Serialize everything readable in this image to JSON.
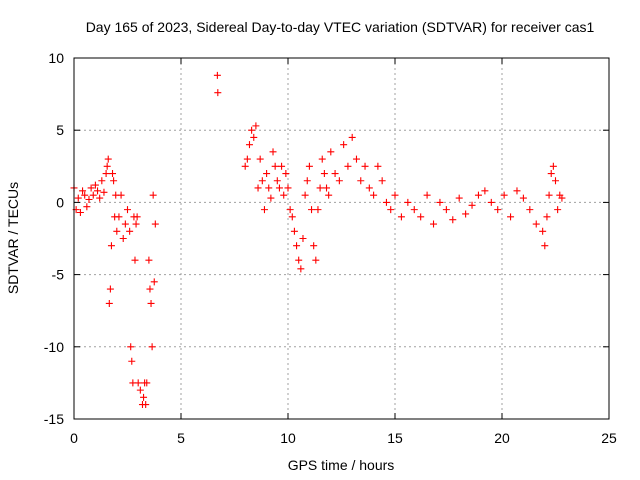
{
  "chart_data": {
    "type": "scatter",
    "title": "Day 165 of 2023, Sidereal Day-to-day VTEC variation (SDTVAR) for receiver cas1",
    "xlabel": "GPS time / hours",
    "ylabel": "SDTVAR / TECUs",
    "xlim": [
      0,
      25
    ],
    "ylim": [
      -15,
      10
    ],
    "xticks": [
      0,
      5,
      10,
      15,
      20,
      25
    ],
    "xtick_labels": [
      "0",
      "5",
      "10",
      "15",
      "20",
      "25"
    ],
    "yticks": [
      10,
      5,
      0,
      -5,
      -10,
      -15
    ],
    "ytick_labels": [
      "10",
      "5",
      "0",
      "-5",
      "-10",
      "-15"
    ],
    "grid": true,
    "marker": "+",
    "color": "#ff0000",
    "series": [
      {
        "name": "cas1",
        "x": [
          0.0,
          0.1,
          0.2,
          0.3,
          0.4,
          0.5,
          0.6,
          0.7,
          0.8,
          0.9,
          1.0,
          1.1,
          1.2,
          1.3,
          1.4,
          1.5,
          1.55,
          1.6,
          1.65,
          1.7,
          1.75,
          1.8,
          1.85,
          1.9,
          1.95,
          2.0,
          2.1,
          2.2,
          2.3,
          2.4,
          2.5,
          2.6,
          2.65,
          2.7,
          2.75,
          2.8,
          2.85,
          2.9,
          2.95,
          3.0,
          3.1,
          3.2,
          3.25,
          3.3,
          3.35,
          3.4,
          3.5,
          3.55,
          3.6,
          3.65,
          3.7,
          3.75,
          3.8,
          6.7,
          6.72,
          8.0,
          8.1,
          8.2,
          8.3,
          8.4,
          8.5,
          8.6,
          8.7,
          8.8,
          8.9,
          9.0,
          9.1,
          9.2,
          9.3,
          9.4,
          9.5,
          9.6,
          9.7,
          9.8,
          9.9,
          10.0,
          10.1,
          10.2,
          10.3,
          10.4,
          10.5,
          10.6,
          10.7,
          10.8,
          10.9,
          11.0,
          11.1,
          11.2,
          11.3,
          11.4,
          11.5,
          11.6,
          11.7,
          11.8,
          11.9,
          12.0,
          12.2,
          12.4,
          12.6,
          12.8,
          13.0,
          13.2,
          13.4,
          13.6,
          13.8,
          14.0,
          14.2,
          14.4,
          14.6,
          14.8,
          15.0,
          15.3,
          15.6,
          15.9,
          16.2,
          16.5,
          16.8,
          17.1,
          17.4,
          17.7,
          18.0,
          18.3,
          18.6,
          18.9,
          19.2,
          19.5,
          19.8,
          20.1,
          20.4,
          20.7,
          21.0,
          21.3,
          21.6,
          21.9,
          22.0,
          22.1,
          22.2,
          22.3,
          22.4,
          22.5,
          22.6,
          22.7,
          22.8
        ],
        "y": [
          1.0,
          -0.5,
          0.3,
          -0.7,
          0.8,
          0.5,
          -0.3,
          0.2,
          1.0,
          0.5,
          1.2,
          0.8,
          0.3,
          1.5,
          0.7,
          2.0,
          2.5,
          3.0,
          -7.0,
          -6.0,
          -3.0,
          2.0,
          1.5,
          -1.0,
          0.5,
          -2.0,
          -1.0,
          0.5,
          -2.5,
          -1.5,
          -0.5,
          -2.0,
          -10.0,
          -11.0,
          -12.5,
          -1.0,
          -4.0,
          -1.5,
          -1.0,
          -12.5,
          -13.0,
          -14.0,
          -13.5,
          -12.5,
          -14.0,
          -12.5,
          -4.0,
          -6.0,
          -7.0,
          -10.0,
          0.5,
          -5.5,
          -1.5,
          8.8,
          7.6,
          2.5,
          3.0,
          4.0,
          5.0,
          4.5,
          5.3,
          1.0,
          3.0,
          1.5,
          -0.5,
          2.0,
          1.0,
          0.3,
          3.5,
          2.5,
          1.5,
          1.0,
          2.5,
          0.5,
          2.0,
          1.0,
          -0.5,
          -1.0,
          -2.0,
          -3.0,
          -4.0,
          -4.6,
          -2.5,
          0.5,
          1.5,
          2.5,
          -0.5,
          -3.0,
          -4.0,
          -0.5,
          1.0,
          3.0,
          2.0,
          1.0,
          0.5,
          3.5,
          2.0,
          1.5,
          4.0,
          2.5,
          4.5,
          3.0,
          1.5,
          2.5,
          1.0,
          0.5,
          2.5,
          1.5,
          0.0,
          -0.5,
          0.5,
          -1.0,
          0.0,
          -0.5,
          -1.0,
          0.5,
          -1.5,
          0.0,
          -0.5,
          -1.2,
          0.3,
          -0.8,
          -0.2,
          0.5,
          0.8,
          0.0,
          -0.5,
          0.5,
          -1.0,
          0.8,
          0.3,
          -0.5,
          -1.5,
          -2.0,
          -3.0,
          -1.0,
          0.5,
          2.0,
          2.5,
          1.5,
          -0.5,
          0.5,
          0.3
        ]
      }
    ]
  }
}
